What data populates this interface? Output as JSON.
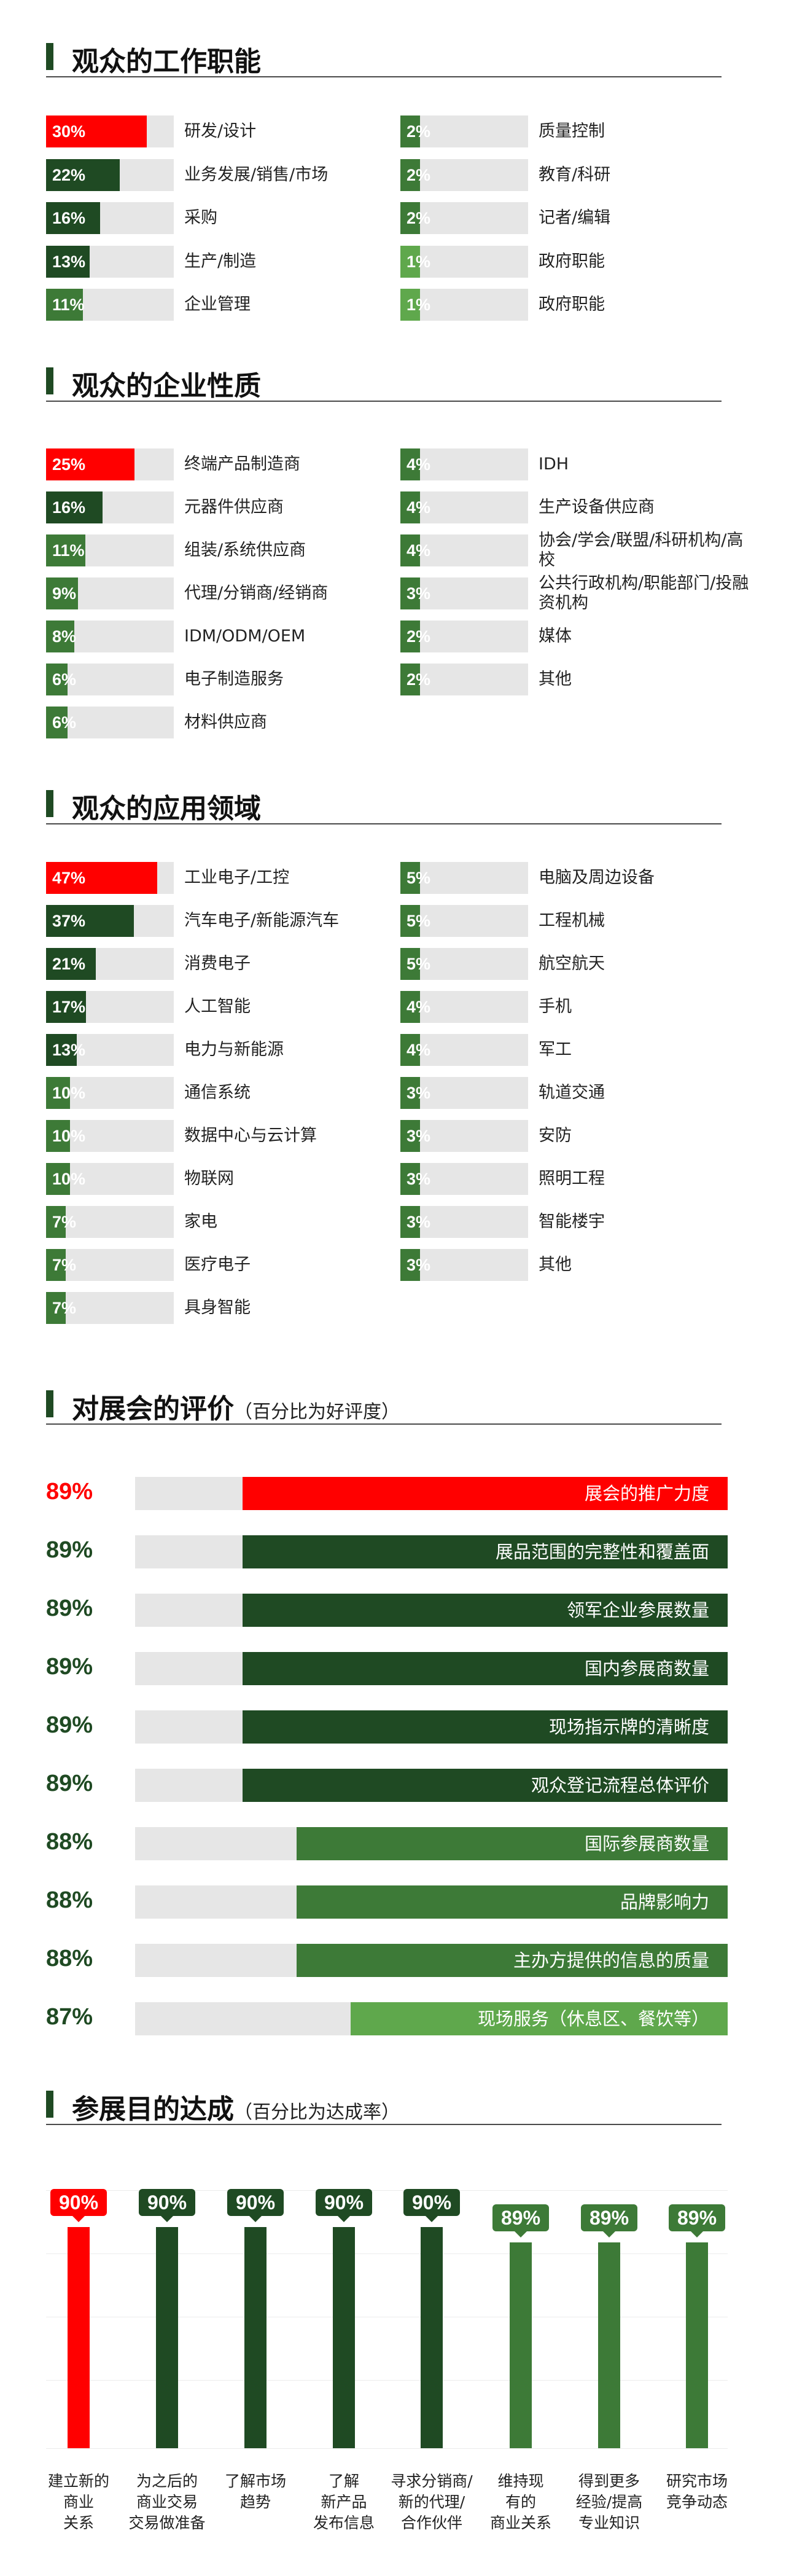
{
  "colors": {
    "highlight_red": "#ff0000",
    "dark_green": "#1f4a23",
    "mid_green": "#3d7a37",
    "light_green": "#5fa84c",
    "track_gray": "#e6e6e6"
  },
  "sections": {
    "job": {
      "title": "观众的工作职能"
    },
    "nature": {
      "title": "观众的企业性质"
    },
    "application": {
      "title": "观众的应用领域"
    },
    "rating": {
      "title": "对展会的评价",
      "subtitle": "（百分比为好评度）"
    },
    "achievement": {
      "title": "参展目的达成",
      "subtitle": "（百分比为达成率）"
    }
  },
  "chart_data": [
    {
      "type": "bar",
      "title": "观众的工作职能",
      "categories": [
        "研发/设计",
        "业务发展/销售/市场",
        "采购",
        "生产/制造",
        "企业管理",
        "质量控制",
        "教育/科研",
        "记者/编辑",
        "政府职能",
        "政府职能"
      ],
      "values": [
        30,
        22,
        16,
        13,
        11,
        2,
        2,
        2,
        1,
        1
      ],
      "value_labels": [
        "30%",
        "22%",
        "16%",
        "13%",
        "11%",
        "2%",
        "2%",
        "2%",
        "1%",
        "1%"
      ],
      "unit": "%"
    },
    {
      "type": "bar",
      "title": "观众的企业性质",
      "categories": [
        "终端产品制造商",
        "元器件供应商",
        "组装/系统供应商",
        "代理/分销商/经销商",
        "IDM/ODM/OEM",
        "电子制造服务",
        "材料供应商",
        "IDH",
        "生产设备供应商",
        "协会/学会/联盟/科研机构/高校",
        "公共行政机构/职能部门/投融资机构",
        "媒体",
        "其他"
      ],
      "values": [
        25,
        16,
        11,
        9,
        8,
        6,
        6,
        4,
        4,
        4,
        3,
        2,
        2
      ],
      "value_labels": [
        "25%",
        "16%",
        "11%",
        "9%",
        "8%",
        "6%",
        "6%",
        "4%",
        "4%",
        "4%",
        "3%",
        "2%",
        "2%"
      ],
      "unit": "%"
    },
    {
      "type": "bar",
      "title": "观众的应用领域",
      "categories": [
        "工业电子/工控",
        "汽车电子/新能源汽车",
        "消费电子",
        "人工智能",
        "电力与新能源",
        "通信系统",
        "数据中心与云计算",
        "物联网",
        "家电",
        "医疗电子",
        "具身智能",
        "电脑及周边设备",
        "工程机械",
        "航空航天",
        "手机",
        "军工",
        "轨道交通",
        "安防",
        "照明工程",
        "智能楼宇",
        "其他"
      ],
      "values": [
        47,
        37,
        21,
        17,
        13,
        10,
        10,
        10,
        7,
        7,
        7,
        5,
        5,
        5,
        4,
        4,
        3,
        3,
        3,
        3,
        3
      ],
      "value_labels": [
        "47%",
        "37%",
        "21%",
        "17%",
        "13%",
        "10%",
        "10%",
        "10%",
        "7%",
        "7%",
        "7%",
        "5%",
        "5%",
        "5%",
        "4%",
        "4%",
        "3%",
        "3%",
        "3%",
        "3%",
        "3%"
      ],
      "unit": "%"
    },
    {
      "type": "bar",
      "title": "对展会的评价",
      "subtitle": "（百分比为好评度）",
      "categories": [
        "展会的推广力度",
        "展品范围的完整性和覆盖面",
        "领军企业参展数量",
        "国内参展商数量",
        "现场指示牌的清晰度",
        "观众登记流程总体评价",
        "国际参展商数量",
        "品牌影响力",
        "主办方提供的信息的质量",
        "现场服务（休息区、餐饮等）"
      ],
      "values": [
        89,
        89,
        89,
        89,
        89,
        89,
        88,
        88,
        88,
        87
      ],
      "value_labels": [
        "89%",
        "89%",
        "89%",
        "89%",
        "89%",
        "89%",
        "88%",
        "88%",
        "88%",
        "87%"
      ],
      "unit": "%"
    },
    {
      "type": "bar",
      "title": "参展目的达成",
      "subtitle": "（百分比为达成率）",
      "categories": [
        "建立新的商业关系",
        "为之后的商业交易交易做准备",
        "了解市场趋势",
        "了解新产品发布信息",
        "寻求分销商/新的代理/合作伙伴",
        "维持现有的商业关系",
        "得到更多经验/提高专业知识",
        "研究市场竞争动态"
      ],
      "category_lines": [
        [
          "建立新的",
          "商业",
          "关系"
        ],
        [
          "为之后的",
          "商业交易",
          "交易做准备"
        ],
        [
          "了解市场",
          "趋势"
        ],
        [
          "了解",
          "新产品",
          "发布信息"
        ],
        [
          "寻求分销商/",
          "新的代理/",
          "合作伙伴"
        ],
        [
          "维持现",
          "有的",
          "商业关系"
        ],
        [
          "得到更多",
          "经验/提高",
          "专业知识"
        ],
        [
          "研究市场",
          "竞争动态"
        ]
      ],
      "values": [
        90,
        90,
        90,
        90,
        90,
        89,
        89,
        89
      ],
      "value_labels": [
        "90%",
        "90%",
        "90%",
        "90%",
        "90%",
        "89%",
        "89%",
        "89%"
      ],
      "unit": "%"
    }
  ]
}
